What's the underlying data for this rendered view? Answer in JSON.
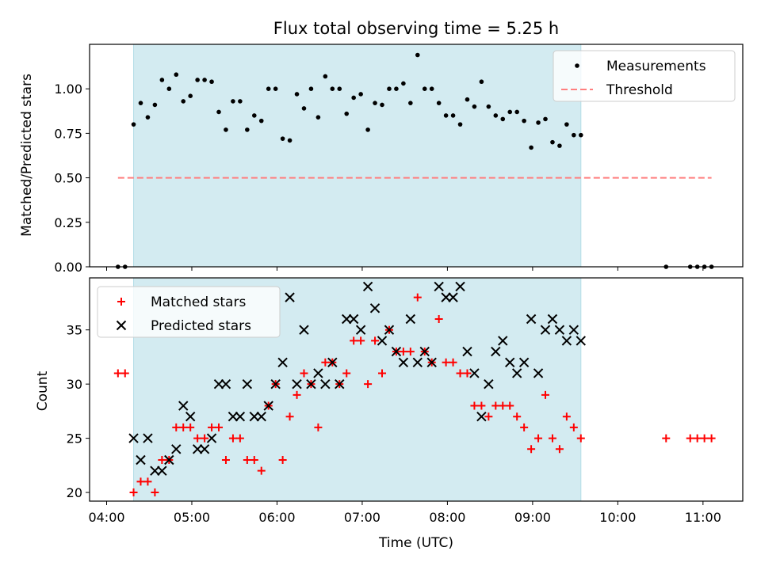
{
  "figure_title": "Flux total observing time = 5.25 h",
  "chart_data": [
    {
      "type": "scatter",
      "ylabel": "Matched/Predicted stars",
      "ylim": [
        0,
        1.25
      ],
      "yticks": [
        "0.00",
        "0.25",
        "0.50",
        "0.75",
        "1.00"
      ],
      "shaded_interval": [
        "04:19",
        "09:34"
      ],
      "legend_position": "upper right",
      "series": [
        {
          "name": "Measurements",
          "marker": "dot",
          "color": "#000000",
          "points": [
            [
              "04:08",
              0
            ],
            [
              "04:13",
              0
            ],
            [
              "04:19",
              0.8
            ],
            [
              "04:24",
              0.92
            ],
            [
              "04:29",
              0.84
            ],
            [
              "04:34",
              0.91
            ],
            [
              "04:39",
              1.05
            ],
            [
              "04:44",
              1.0
            ],
            [
              "04:49",
              1.08
            ],
            [
              "04:54",
              0.93
            ],
            [
              "04:59",
              0.96
            ],
            [
              "05:04",
              1.05
            ],
            [
              "05:09",
              1.05
            ],
            [
              "05:14",
              1.04
            ],
            [
              "05:19",
              0.87
            ],
            [
              "05:24",
              0.77
            ],
            [
              "05:29",
              0.93
            ],
            [
              "05:34",
              0.93
            ],
            [
              "05:39",
              0.77
            ],
            [
              "05:44",
              0.85
            ],
            [
              "05:49",
              0.82
            ],
            [
              "05:54",
              1.0
            ],
            [
              "05:59",
              1.0
            ],
            [
              "06:04",
              0.72
            ],
            [
              "06:09",
              0.71
            ],
            [
              "06:14",
              0.97
            ],
            [
              "06:19",
              0.89
            ],
            [
              "06:24",
              1.0
            ],
            [
              "06:29",
              0.84
            ],
            [
              "06:34",
              1.07
            ],
            [
              "06:39",
              1.0
            ],
            [
              "06:44",
              1.0
            ],
            [
              "06:49",
              0.86
            ],
            [
              "06:54",
              0.95
            ],
            [
              "06:59",
              0.97
            ],
            [
              "07:04",
              0.77
            ],
            [
              "07:09",
              0.92
            ],
            [
              "07:14",
              0.91
            ],
            [
              "07:19",
              1.0
            ],
            [
              "07:24",
              1.0
            ],
            [
              "07:29",
              1.03
            ],
            [
              "07:34",
              0.92
            ],
            [
              "07:39",
              1.19
            ],
            [
              "07:44",
              1.0
            ],
            [
              "07:49",
              1.0
            ],
            [
              "07:54",
              0.92
            ],
            [
              "07:59",
              0.85
            ],
            [
              "08:04",
              0.85
            ],
            [
              "08:09",
              0.8
            ],
            [
              "08:14",
              0.94
            ],
            [
              "08:19",
              0.9
            ],
            [
              "08:24",
              1.04
            ],
            [
              "08:29",
              0.9
            ],
            [
              "08:34",
              0.85
            ],
            [
              "08:39",
              0.83
            ],
            [
              "08:44",
              0.87
            ],
            [
              "08:49",
              0.87
            ],
            [
              "08:54",
              0.82
            ],
            [
              "08:59",
              0.67
            ],
            [
              "09:04",
              0.81
            ],
            [
              "09:09",
              0.83
            ],
            [
              "09:14",
              0.7
            ],
            [
              "09:19",
              0.68
            ],
            [
              "09:24",
              0.8
            ],
            [
              "09:29",
              0.74
            ],
            [
              "09:34",
              0.74
            ],
            [
              "10:34",
              0
            ],
            [
              "10:51",
              0
            ],
            [
              "10:56",
              0
            ],
            [
              "11:01",
              0
            ],
            [
              "11:06",
              0
            ]
          ]
        },
        {
          "name": "Threshold",
          "marker": "dashed-line",
          "color": "#ff7f7f",
          "points": [
            [
              "04:08",
              0.5
            ],
            [
              "11:06",
              0.5
            ]
          ]
        }
      ]
    },
    {
      "type": "scatter",
      "xlabel": "Time (UTC)",
      "ylabel": "Count",
      "ylim": [
        19.2,
        39.8
      ],
      "yticks": [
        "20",
        "25",
        "30",
        "35"
      ],
      "xticks": [
        "04:00",
        "05:00",
        "06:00",
        "07:00",
        "08:00",
        "09:00",
        "10:00",
        "11:00"
      ],
      "shaded_interval": [
        "04:19",
        "09:34"
      ],
      "legend_position": "upper left",
      "series": [
        {
          "name": "Matched stars",
          "marker": "plus",
          "color": "#ff0000",
          "points": [
            [
              "04:08",
              31
            ],
            [
              "04:13",
              31
            ],
            [
              "04:19",
              20
            ],
            [
              "04:24",
              21
            ],
            [
              "04:29",
              21
            ],
            [
              "04:34",
              20
            ],
            [
              "04:39",
              23
            ],
            [
              "04:44",
              23
            ],
            [
              "04:49",
              26
            ],
            [
              "04:54",
              26
            ],
            [
              "04:59",
              26
            ],
            [
              "05:04",
              25
            ],
            [
              "05:09",
              25
            ],
            [
              "05:14",
              26
            ],
            [
              "05:19",
              26
            ],
            [
              "05:24",
              23
            ],
            [
              "05:29",
              25
            ],
            [
              "05:34",
              25
            ],
            [
              "05:39",
              23
            ],
            [
              "05:44",
              23
            ],
            [
              "05:49",
              22
            ],
            [
              "05:54",
              28
            ],
            [
              "05:59",
              30
            ],
            [
              "06:04",
              23
            ],
            [
              "06:09",
              27
            ],
            [
              "06:14",
              29
            ],
            [
              "06:19",
              31
            ],
            [
              "06:24",
              30
            ],
            [
              "06:29",
              26
            ],
            [
              "06:34",
              32
            ],
            [
              "06:39",
              32
            ],
            [
              "06:44",
              30
            ],
            [
              "06:49",
              31
            ],
            [
              "06:54",
              34
            ],
            [
              "06:59",
              34
            ],
            [
              "07:04",
              30
            ],
            [
              "07:09",
              34
            ],
            [
              "07:14",
              31
            ],
            [
              "07:19",
              35
            ],
            [
              "07:24",
              33
            ],
            [
              "07:29",
              33
            ],
            [
              "07:34",
              33
            ],
            [
              "07:39",
              38
            ],
            [
              "07:44",
              33
            ],
            [
              "07:49",
              32
            ],
            [
              "07:54",
              36
            ],
            [
              "07:59",
              32
            ],
            [
              "08:04",
              32
            ],
            [
              "08:09",
              31
            ],
            [
              "08:14",
              31
            ],
            [
              "08:19",
              28
            ],
            [
              "08:24",
              28
            ],
            [
              "08:29",
              27
            ],
            [
              "08:34",
              28
            ],
            [
              "08:39",
              28
            ],
            [
              "08:44",
              28
            ],
            [
              "08:49",
              27
            ],
            [
              "08:54",
              26
            ],
            [
              "08:59",
              24
            ],
            [
              "09:04",
              25
            ],
            [
              "09:09",
              29
            ],
            [
              "09:14",
              25
            ],
            [
              "09:19",
              24
            ],
            [
              "09:24",
              27
            ],
            [
              "09:29",
              26
            ],
            [
              "09:34",
              25
            ],
            [
              "10:34",
              25
            ],
            [
              "10:51",
              25
            ],
            [
              "10:56",
              25
            ],
            [
              "11:01",
              25
            ],
            [
              "11:06",
              25
            ]
          ]
        },
        {
          "name": "Predicted stars",
          "marker": "x",
          "color": "#000000",
          "points": [
            [
              "04:19",
              25
            ],
            [
              "04:24",
              23
            ],
            [
              "04:29",
              25
            ],
            [
              "04:34",
              22
            ],
            [
              "04:39",
              22
            ],
            [
              "04:44",
              23
            ],
            [
              "04:49",
              24
            ],
            [
              "04:54",
              28
            ],
            [
              "04:59",
              27
            ],
            [
              "05:04",
              24
            ],
            [
              "05:09",
              24
            ],
            [
              "05:14",
              25
            ],
            [
              "05:19",
              30
            ],
            [
              "05:24",
              30
            ],
            [
              "05:29",
              27
            ],
            [
              "05:34",
              27
            ],
            [
              "05:39",
              30
            ],
            [
              "05:44",
              27
            ],
            [
              "05:49",
              27
            ],
            [
              "05:54",
              28
            ],
            [
              "05:59",
              30
            ],
            [
              "06:04",
              32
            ],
            [
              "06:09",
              38
            ],
            [
              "06:14",
              30
            ],
            [
              "06:19",
              35
            ],
            [
              "06:24",
              30
            ],
            [
              "06:29",
              31
            ],
            [
              "06:34",
              30
            ],
            [
              "06:39",
              32
            ],
            [
              "06:44",
              30
            ],
            [
              "06:49",
              36
            ],
            [
              "06:54",
              36
            ],
            [
              "06:59",
              35
            ],
            [
              "07:04",
              39
            ],
            [
              "07:09",
              37
            ],
            [
              "07:14",
              34
            ],
            [
              "07:19",
              35
            ],
            [
              "07:24",
              33
            ],
            [
              "07:29",
              32
            ],
            [
              "07:34",
              36
            ],
            [
              "07:39",
              32
            ],
            [
              "07:44",
              33
            ],
            [
              "07:49",
              32
            ],
            [
              "07:54",
              39
            ],
            [
              "07:59",
              38
            ],
            [
              "08:04",
              38
            ],
            [
              "08:09",
              39
            ],
            [
              "08:14",
              33
            ],
            [
              "08:19",
              31
            ],
            [
              "08:24",
              27
            ],
            [
              "08:29",
              30
            ],
            [
              "08:34",
              33
            ],
            [
              "08:39",
              34
            ],
            [
              "08:44",
              32
            ],
            [
              "08:49",
              31
            ],
            [
              "08:54",
              32
            ],
            [
              "08:59",
              36
            ],
            [
              "09:04",
              31
            ],
            [
              "09:09",
              35
            ],
            [
              "09:14",
              36
            ],
            [
              "09:19",
              35
            ],
            [
              "09:24",
              34
            ],
            [
              "09:29",
              35
            ],
            [
              "09:34",
              34
            ]
          ]
        }
      ]
    }
  ],
  "colors": {
    "shade": "#d3ebf1",
    "shade_edge": "#b3dde8",
    "matched": "#ff0000",
    "predicted": "#000000",
    "threshold": "#ff7f7f"
  }
}
